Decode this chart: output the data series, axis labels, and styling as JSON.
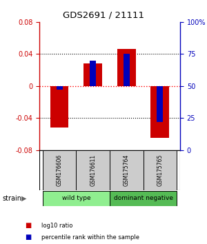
{
  "title": "GDS2691 / 21111",
  "samples": [
    "GSM176606",
    "GSM176611",
    "GSM175764",
    "GSM175765"
  ],
  "log10_ratios": [
    -0.052,
    0.028,
    0.046,
    -0.065
  ],
  "percentile_ranks": [
    47,
    70,
    75,
    22
  ],
  "groups": [
    {
      "label": "wild type",
      "samples": [
        0,
        1
      ],
      "color": "#90EE90"
    },
    {
      "label": "dominant negative",
      "samples": [
        2,
        3
      ],
      "color": "#55BB55"
    }
  ],
  "ylim_left": [
    -0.08,
    0.08
  ],
  "ylim_right": [
    0,
    100
  ],
  "yticks_left": [
    -0.08,
    -0.04,
    0.0,
    0.04,
    0.08
  ],
  "yticks_right": [
    0,
    25,
    50,
    75,
    100
  ],
  "red_color": "#CC0000",
  "blue_color": "#0000BB",
  "zero_line_color": "#FF0000",
  "label_color_left": "#CC0000",
  "label_color_right": "#0000BB",
  "strain_label": "strain",
  "legend_items": [
    {
      "color": "#CC0000",
      "label": "log10 ratio"
    },
    {
      "color": "#0000BB",
      "label": "percentile rank within the sample"
    }
  ]
}
